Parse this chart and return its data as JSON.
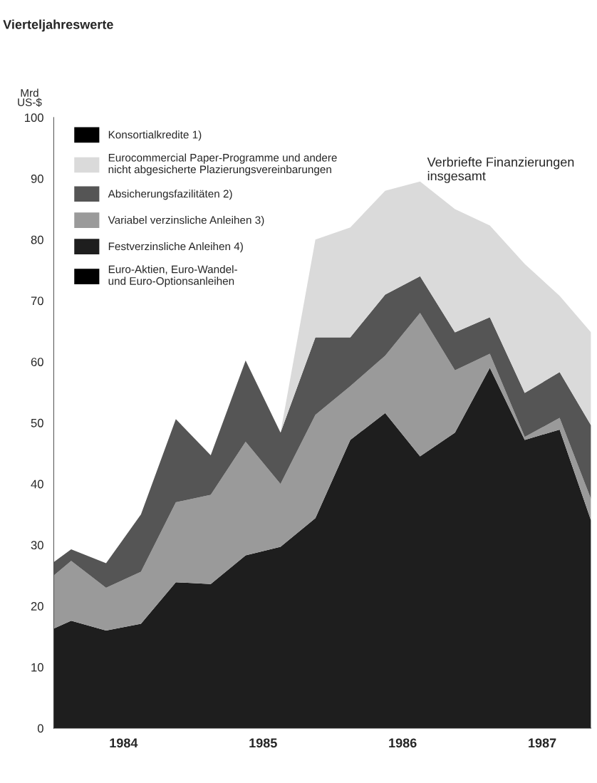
{
  "chart_data": {
    "type": "area",
    "stacked": true,
    "title": "Vierteljahreswerte",
    "ylabel": "Mrd\nUS-$",
    "annotations": [
      "Verbriefte Finanzierungen\ninsgesamt"
    ],
    "x": [
      1984.0,
      1984.125,
      1984.375,
      1984.625,
      1984.875,
      1985.125,
      1985.375,
      1985.625,
      1985.875,
      1986.125,
      1986.375,
      1986.625,
      1986.875,
      1987.125,
      1987.375,
      1987.625,
      1987.85
    ],
    "xlim": [
      1984.0,
      1987.85
    ],
    "xticks": [
      {
        "value": 1984.5,
        "label": "1984"
      },
      {
        "value": 1985.5,
        "label": "1985"
      },
      {
        "value": 1986.5,
        "label": "1986"
      },
      {
        "value": 1987.5,
        "label": "1987"
      }
    ],
    "ylim": [
      0,
      100
    ],
    "yticks": [
      0,
      10,
      20,
      30,
      40,
      50,
      60,
      70,
      80,
      90,
      100
    ],
    "grid": false,
    "legend": "top left",
    "series": [
      {
        "name": "Euro-Aktien, Euro-Wandel-\nund Euro-Optionsanleihen",
        "color": "#000000",
        "values": [
          null,
          null,
          null,
          null,
          null,
          null,
          null,
          null,
          null,
          null,
          null,
          null,
          null,
          null,
          null,
          null,
          null
        ]
      },
      {
        "name": "Festverzinsliche Anleihen 4)",
        "color": "#1e1e1e",
        "values": [
          16.3,
          17.6,
          16.0,
          17.1,
          23.9,
          23.6,
          28.3,
          29.7,
          34.4,
          47.2,
          51.6,
          44.5,
          48.4,
          59.0,
          47.2,
          48.9,
          34.0
        ]
      },
      {
        "name": "Variabel verzinsliche Anleihen 3)",
        "color": "#9a9a9a",
        "values": [
          8.7,
          9.8,
          7.0,
          8.5,
          13.1,
          14.6,
          18.6,
          10.3,
          16.9,
          8.8,
          9.4,
          23.5,
          10.2,
          2.3,
          0.5,
          1.9,
          3.5
        ]
      },
      {
        "name": "Absicherungsfazilitäten 2)",
        "color": "#555555",
        "values": [
          2.2,
          1.9,
          4.0,
          9.4,
          13.6,
          6.5,
          13.3,
          8.4,
          12.7,
          8.0,
          10.0,
          6.0,
          6.2,
          6.0,
          7.2,
          7.5,
          12.1
        ]
      },
      {
        "name": "Eurocommercial Paper-Programme und andere\nnicht abgesicherte Plazierungsvereinbarungen",
        "color": "#dadada",
        "values": [
          0,
          0,
          0,
          0,
          0,
          0,
          0,
          0,
          16.0,
          18.0,
          17.0,
          15.5,
          20.2,
          15.0,
          21.1,
          12.5,
          15.2
        ]
      },
      {
        "name": "Konsortialkredite 1)",
        "color": "#000000",
        "values": [
          null,
          null,
          null,
          null,
          null,
          null,
          null,
          null,
          null,
          null,
          null,
          null,
          null,
          null,
          null,
          null,
          null
        ]
      }
    ]
  }
}
